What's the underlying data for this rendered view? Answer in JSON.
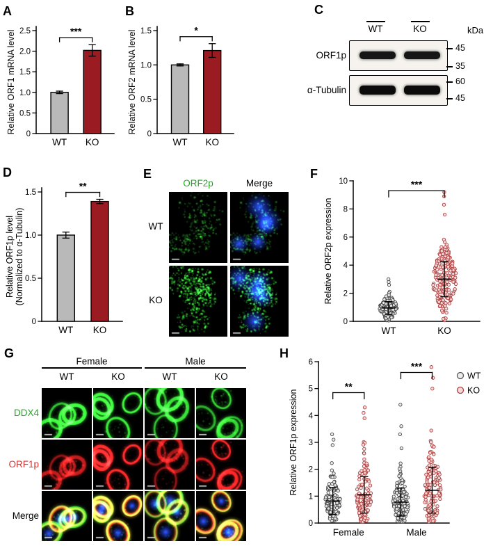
{
  "figure": {
    "panel_labels": {
      "A": "A",
      "B": "B",
      "C": "C",
      "D": "D",
      "E": "E",
      "F": "F",
      "G": "G",
      "H": "H"
    }
  },
  "panels": {
    "C": {
      "lanes": [
        "WT",
        "KO"
      ],
      "kda_label": "kDa",
      "rows": [
        {
          "label": "ORF1p",
          "markers": [
            "45",
            "35"
          ]
        },
        {
          "label": "α-Tubulin",
          "markers": [
            "60",
            "45"
          ]
        }
      ]
    },
    "E": {
      "col_headers": [
        "ORF2p",
        "Merge"
      ],
      "header_colors": [
        "#1faa1f",
        "#000000"
      ],
      "row_labels": [
        "WT",
        "KO"
      ],
      "images": [
        {
          "name": "WT ORF2p",
          "seed": 7,
          "type": "speckle",
          "cells": 5,
          "dots": 320,
          "green_alpha": 0.55,
          "blue": false
        },
        {
          "name": "WT Merge",
          "seed": 7,
          "type": "speckle",
          "cells": 5,
          "dots": 320,
          "green_alpha": 0.5,
          "blue": true
        },
        {
          "name": "KO ORF2p",
          "seed": 9,
          "type": "speckle",
          "cells": 5,
          "dots": 560,
          "green_alpha": 0.85,
          "blue": false
        },
        {
          "name": "KO Merge",
          "seed": 9,
          "type": "speckle",
          "cells": 5,
          "dots": 560,
          "green_alpha": 0.8,
          "blue": true
        }
      ]
    },
    "G": {
      "group_headers": [
        "Female",
        "Male"
      ],
      "lane_labels": [
        "WT",
        "KO",
        "WT",
        "KO"
      ],
      "row_labels": [
        {
          "label": "DDX4",
          "color": "#1faa1f"
        },
        {
          "label": "ORF1p",
          "color": "#e03030"
        },
        {
          "label": "Merge",
          "color": "#000000"
        }
      ],
      "images": [
        {
          "name": "Female WT DDX4",
          "seed": 31,
          "type": "rings",
          "cells": 4,
          "green": 0.95
        },
        {
          "name": "Female KO DDX4",
          "seed": 32,
          "type": "rings",
          "cells": 4,
          "green": 0.95
        },
        {
          "name": "Male WT DDX4",
          "seed": 33,
          "type": "rings",
          "cells": 4,
          "green": 0.9
        },
        {
          "name": "Male KO DDX4",
          "seed": 34,
          "type": "rings",
          "cells": 4,
          "green": 0.9
        },
        {
          "name": "Female WT ORF1p",
          "seed": 31,
          "type": "rings",
          "cells": 4,
          "red": 0.6
        },
        {
          "name": "Female KO ORF1p",
          "seed": 32,
          "type": "rings",
          "cells": 4,
          "red": 0.95
        },
        {
          "name": "Male WT ORF1p",
          "seed": 33,
          "type": "rings",
          "cells": 4,
          "red": 0.55
        },
        {
          "name": "Male KO ORF1p",
          "seed": 34,
          "type": "rings",
          "cells": 4,
          "red": 0.9
        },
        {
          "name": "Female WT Merge",
          "seed": 31,
          "type": "rings",
          "cells": 4,
          "green": 0.85,
          "red": 0.55,
          "blue": true
        },
        {
          "name": "Female KO Merge",
          "seed": 32,
          "type": "rings",
          "cells": 4,
          "green": 0.85,
          "red": 0.9,
          "blue": true
        },
        {
          "name": "Male WT Merge",
          "seed": 33,
          "type": "rings",
          "cells": 4,
          "green": 0.8,
          "red": 0.5,
          "blue": true
        },
        {
          "name": "Male KO Merge",
          "seed": 34,
          "type": "rings",
          "cells": 4,
          "green": 0.8,
          "red": 0.85,
          "blue": true
        }
      ]
    }
  },
  "chart_data": [
    {
      "id": "A",
      "type": "bar",
      "title": "",
      "ylabel": "Relative ORF1 mRNA level",
      "categories": [
        "WT",
        "KO"
      ],
      "values": [
        1.0,
        2.02
      ],
      "errors": [
        0.03,
        0.14
      ],
      "ylim": [
        0,
        2.5
      ],
      "yticks": [
        0,
        0.5,
        1.0,
        1.5,
        2.0,
        2.5
      ],
      "ytick_labels": [
        "0",
        "0.5",
        "1.0",
        "1.5",
        "2.0",
        "2.5"
      ],
      "bar_colors": [
        "#b9b9b9",
        "#9b1b22"
      ],
      "sig": [
        {
          "groups": [
            0,
            1
          ],
          "label": "***"
        }
      ]
    },
    {
      "id": "B",
      "type": "bar",
      "title": "",
      "ylabel": "Relative ORF2 mRNA level",
      "categories": [
        "WT",
        "KO"
      ],
      "values": [
        1.0,
        1.21
      ],
      "errors": [
        0.015,
        0.1
      ],
      "ylim": [
        0,
        1.5
      ],
      "yticks": [
        0,
        0.5,
        1.0,
        1.5
      ],
      "ytick_labels": [
        "0",
        "0.5",
        "1.0",
        "1.5"
      ],
      "bar_colors": [
        "#b9b9b9",
        "#9b1b22"
      ],
      "sig": [
        {
          "groups": [
            0,
            1
          ],
          "label": "*"
        }
      ]
    },
    {
      "id": "D",
      "type": "bar",
      "title": "",
      "ylabel": "Relative ORF1p level",
      "ylabel2": "(Normalized to α-Tubulin)",
      "categories": [
        "WT",
        "KO"
      ],
      "values": [
        1.0,
        1.39
      ],
      "errors": [
        0.035,
        0.025
      ],
      "ylim": [
        0,
        1.5
      ],
      "yticks": [
        0,
        0.5,
        1.0,
        1.5
      ],
      "ytick_labels": [
        "0",
        "0.5",
        "1.0",
        "1.5"
      ],
      "bar_colors": [
        "#b9b9b9",
        "#9b1b22"
      ],
      "sig": [
        {
          "groups": [
            0,
            1
          ],
          "label": "**"
        }
      ]
    },
    {
      "id": "F",
      "type": "scatter",
      "title": "",
      "ylabel": "Relative ORF2p expression",
      "ylim": [
        0,
        10
      ],
      "yticks": [
        0,
        2,
        4,
        6,
        8,
        10
      ],
      "ytick_labels": [
        "0",
        "2",
        "4",
        "6",
        "8",
        "10"
      ],
      "xcats": [
        {
          "label": "WT",
          "xfrac": 0.28
        },
        {
          "label": "KO",
          "xfrac": 0.72
        }
      ],
      "groups": [
        {
          "label": "WT",
          "xfrac": 0.28,
          "mean": 0.95,
          "sd": 0.45,
          "n": 170,
          "jmax": 12,
          "fill": "#ececec",
          "stroke": "#444444",
          "extra": [
            2.6,
            2.8,
            3.0
          ]
        },
        {
          "label": "KO",
          "xfrac": 0.72,
          "mean": 3.0,
          "sd": 1.25,
          "n": 210,
          "jmax": 17,
          "fill": "#f6d9d9",
          "stroke": "#b04040",
          "extra": [
            7.6,
            8.3,
            8.9,
            9.2
          ]
        }
      ],
      "sig": [
        {
          "groups": [
            0,
            1
          ],
          "label": "***",
          "y": 9.3
        }
      ]
    },
    {
      "id": "H",
      "type": "scatter",
      "title": "",
      "ylabel": "Relative ORF1p expression",
      "ylim": [
        0,
        6
      ],
      "yticks": [
        0,
        1,
        2,
        3,
        4,
        5,
        6
      ],
      "ytick_labels": [
        "0",
        "1",
        "2",
        "3",
        "4",
        "5",
        "6"
      ],
      "xcats": [
        {
          "label": "Female",
          "xfrac": 0.23
        },
        {
          "label": "Male",
          "xfrac": 0.75
        }
      ],
      "groups": [
        {
          "label": "WT",
          "xfrac": 0.11,
          "mean": 0.82,
          "sd": 0.5,
          "n": 120,
          "jmax": 10,
          "fill": "#ececec",
          "stroke": "#444444",
          "extra": [
            2.9,
            3.1,
            3.3
          ]
        },
        {
          "label": "KO",
          "xfrac": 0.35,
          "mean": 1.05,
          "sd": 0.68,
          "n": 130,
          "jmax": 10,
          "fill": "#f6d9d9",
          "stroke": "#b04040",
          "extra": [
            3.9,
            4.1,
            4.3
          ]
        },
        {
          "label": "WT",
          "xfrac": 0.63,
          "mean": 0.78,
          "sd": 0.52,
          "n": 130,
          "jmax": 10,
          "fill": "#ececec",
          "stroke": "#444444",
          "extra": [
            3.3,
            3.6,
            4.4
          ]
        },
        {
          "label": "KO",
          "xfrac": 0.87,
          "mean": 1.22,
          "sd": 0.85,
          "n": 140,
          "jmax": 12,
          "fill": "#f6d9d9",
          "stroke": "#b04040",
          "extra": [
            5.0,
            5.4,
            5.8
          ]
        }
      ],
      "legend": [
        {
          "label": "WT",
          "fill": "#ececec",
          "stroke": "#555555"
        },
        {
          "label": "KO",
          "fill": "#f6d9d9",
          "stroke": "#b04040"
        }
      ],
      "sig": [
        {
          "groups": [
            0,
            1
          ],
          "label": "**",
          "y": 4.85
        },
        {
          "groups": [
            2,
            3
          ],
          "label": "***",
          "y": 5.6
        }
      ]
    }
  ]
}
